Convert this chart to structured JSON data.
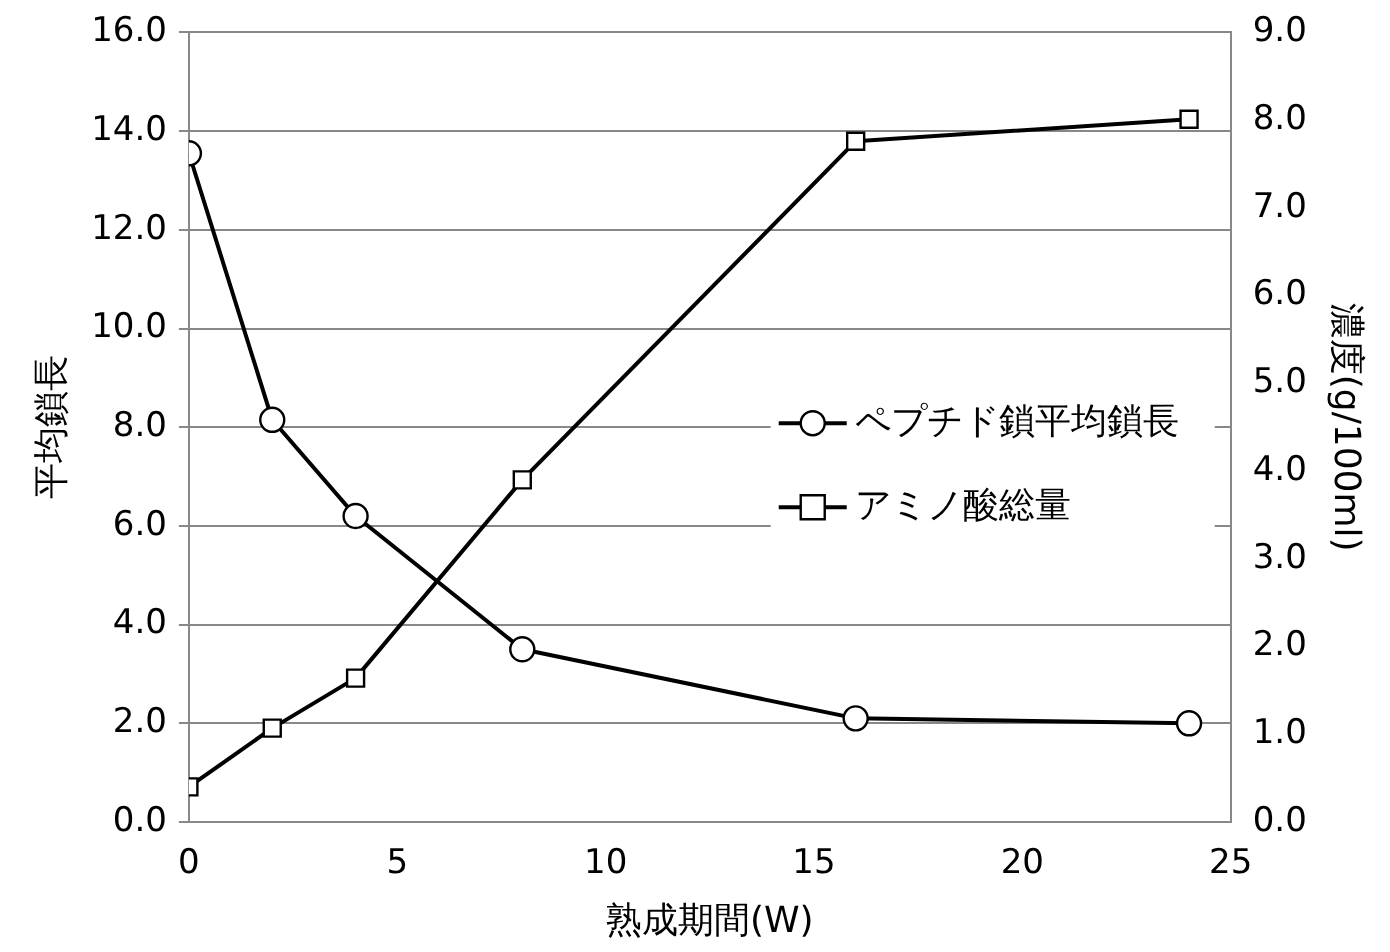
{
  "chart_data": {
    "type": "line",
    "xlabel": "熟成期間(W)",
    "ylabel": "平均鎖長",
    "y2label": "濃度(g/100ml)",
    "x": [
      0,
      2,
      4,
      8,
      16,
      24
    ],
    "series": [
      {
        "name": "ペプチド鎖平均鎖長",
        "color": "#000000",
        "marker": "circle",
        "values": [
          13.55,
          8.15,
          6.2,
          3.5,
          2.1,
          2.0
        ]
      },
      {
        "name": "アミノ酸総量",
        "color": "#000000",
        "marker": "square",
        "axis": "y2",
        "values": [
          0.4,
          1.07,
          1.64,
          3.9,
          7.76,
          8.01
        ]
      }
    ],
    "xlim": [
      0,
      25
    ],
    "xticks": [
      0,
      5,
      10,
      15,
      20,
      25
    ],
    "ylim": [
      0,
      16
    ],
    "yticks": [
      {
        "value": 0,
        "label": "0.0"
      },
      {
        "value": 2,
        "label": "2.0"
      },
      {
        "value": 4,
        "label": "4.0"
      },
      {
        "value": 6,
        "label": "6.0"
      },
      {
        "value": 8,
        "label": "8.0"
      },
      {
        "value": 10,
        "label": "10.0"
      },
      {
        "value": 12,
        "label": "12.0"
      },
      {
        "value": 14,
        "label": "14.0"
      },
      {
        "value": 16,
        "label": "16.0"
      }
    ],
    "y2lim": [
      0,
      9
    ],
    "y2ticks": [
      {
        "value": 0,
        "label": "0.0"
      },
      {
        "value": 1,
        "label": "1.0"
      },
      {
        "value": 2,
        "label": "2.0"
      },
      {
        "value": 3,
        "label": "3.0"
      },
      {
        "value": 4,
        "label": "4.0"
      },
      {
        "value": 5,
        "label": "5.0"
      },
      {
        "value": 6,
        "label": "6.0"
      },
      {
        "value": 7,
        "label": "7.0"
      },
      {
        "value": 8,
        "label": "8.0"
      },
      {
        "value": 9,
        "label": "9.0"
      }
    ],
    "grid": "y",
    "legend": "right",
    "line_style": "solid"
  }
}
